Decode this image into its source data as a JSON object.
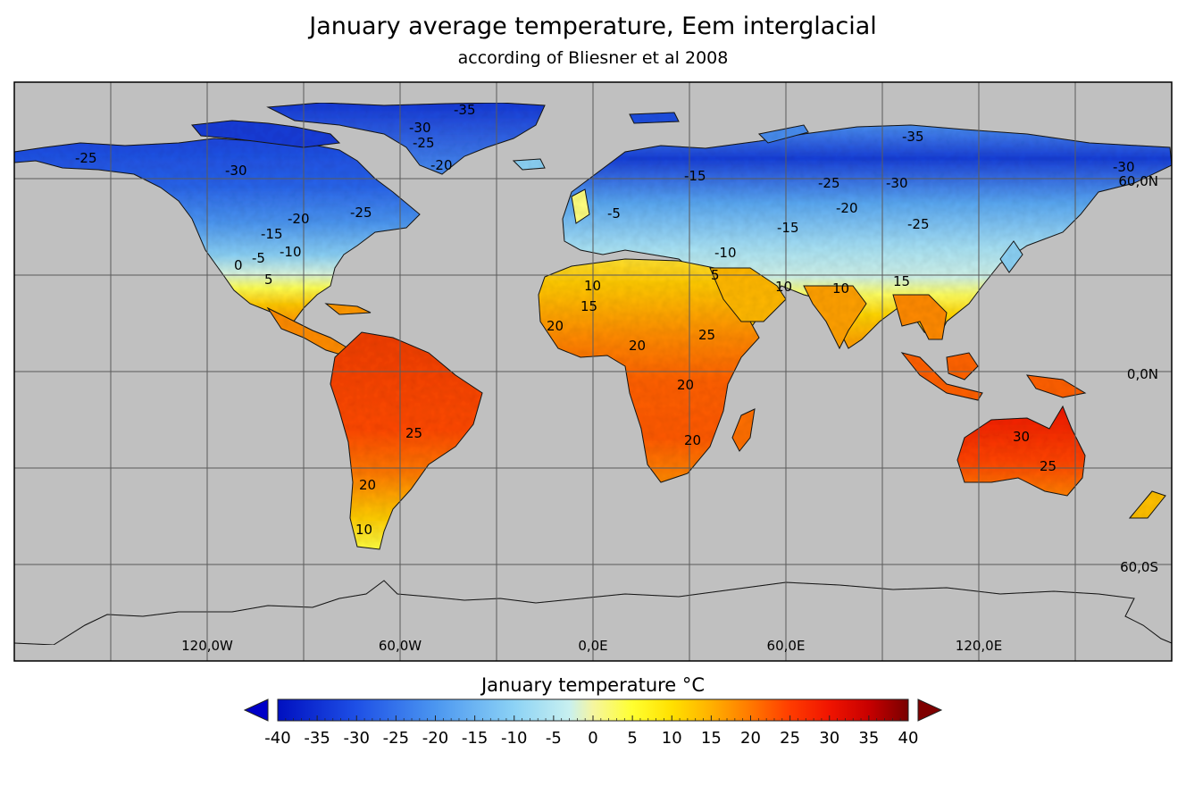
{
  "header": {
    "title": "January average temperature, Eem interglacial",
    "subtitle": "according of Bliesner et al 2008"
  },
  "map": {
    "ocean_color": "#c0c0c0",
    "grid_color": "#5a5a5a",
    "lon_labels": [
      "120,0W",
      "60,0W",
      "0,0E",
      "60,0E",
      "120,0E"
    ],
    "lat_labels": [
      "60,0N",
      "0,0N",
      "60,0S"
    ],
    "contour_labels": [
      {
        "text": "-35",
        "region": "greenland"
      },
      {
        "text": "-30",
        "region": "greenland"
      },
      {
        "text": "-25",
        "region": "greenland"
      },
      {
        "text": "-20",
        "region": "greenland"
      },
      {
        "text": "-25",
        "region": "alaska"
      },
      {
        "text": "-30",
        "region": "canada"
      },
      {
        "text": "-25",
        "region": "canada-east"
      },
      {
        "text": "-20",
        "region": "canada"
      },
      {
        "text": "-15",
        "region": "usa-north"
      },
      {
        "text": "-10",
        "region": "usa-north"
      },
      {
        "text": "-5",
        "region": "usa"
      },
      {
        "text": "0",
        "region": "usa"
      },
      {
        "text": "5",
        "region": "usa-south"
      },
      {
        "text": "-15",
        "region": "scandinavia"
      },
      {
        "text": "-5",
        "region": "europe"
      },
      {
        "text": "-25",
        "region": "siberia"
      },
      {
        "text": "-30",
        "region": "siberia"
      },
      {
        "text": "-35",
        "region": "siberia-east"
      },
      {
        "text": "-30",
        "region": "far-east"
      },
      {
        "text": "-20",
        "region": "central-asia"
      },
      {
        "text": "-25",
        "region": "mongolia"
      },
      {
        "text": "-15",
        "region": "central-asia"
      },
      {
        "text": "-10",
        "region": "caspian"
      },
      {
        "text": "5",
        "region": "middle-east"
      },
      {
        "text": "10",
        "region": "arabia"
      },
      {
        "text": "10",
        "region": "india"
      },
      {
        "text": "15",
        "region": "south-asia"
      },
      {
        "text": "10",
        "region": "sahara"
      },
      {
        "text": "15",
        "region": "sahara"
      },
      {
        "text": "20",
        "region": "west-africa"
      },
      {
        "text": "20",
        "region": "central-africa"
      },
      {
        "text": "25",
        "region": "east-africa"
      },
      {
        "text": "20",
        "region": "east-africa"
      },
      {
        "text": "20",
        "region": "southern-africa"
      },
      {
        "text": "25",
        "region": "brazil"
      },
      {
        "text": "20",
        "region": "andes"
      },
      {
        "text": "10",
        "region": "patagonia"
      },
      {
        "text": "30",
        "region": "australia"
      },
      {
        "text": "25",
        "region": "australia"
      }
    ]
  },
  "colorbar": {
    "title": "January temperature °C",
    "ticks": [
      "-40",
      "-35",
      "-30",
      "-25",
      "-20",
      "-15",
      "-10",
      "-5",
      "0",
      "5",
      "10",
      "15",
      "20",
      "25",
      "30",
      "35",
      "40"
    ],
    "min": -40,
    "max": 40,
    "under_color": "#0000c8",
    "over_color": "#7f0000",
    "stops": [
      {
        "value": -40,
        "color": "#0010c0"
      },
      {
        "value": -30,
        "color": "#1e50e6"
      },
      {
        "value": -20,
        "color": "#4b96f0"
      },
      {
        "value": -10,
        "color": "#8cd2f5"
      },
      {
        "value": -3,
        "color": "#c8f0f0"
      },
      {
        "value": 0,
        "color": "#f5f5a0"
      },
      {
        "value": 5,
        "color": "#ffff30"
      },
      {
        "value": 10,
        "color": "#ffe000"
      },
      {
        "value": 15,
        "color": "#ffb000"
      },
      {
        "value": 20,
        "color": "#ff7800"
      },
      {
        "value": 25,
        "color": "#ff3c00"
      },
      {
        "value": 30,
        "color": "#f01400"
      },
      {
        "value": 35,
        "color": "#c80000"
      },
      {
        "value": 40,
        "color": "#780000"
      }
    ]
  }
}
